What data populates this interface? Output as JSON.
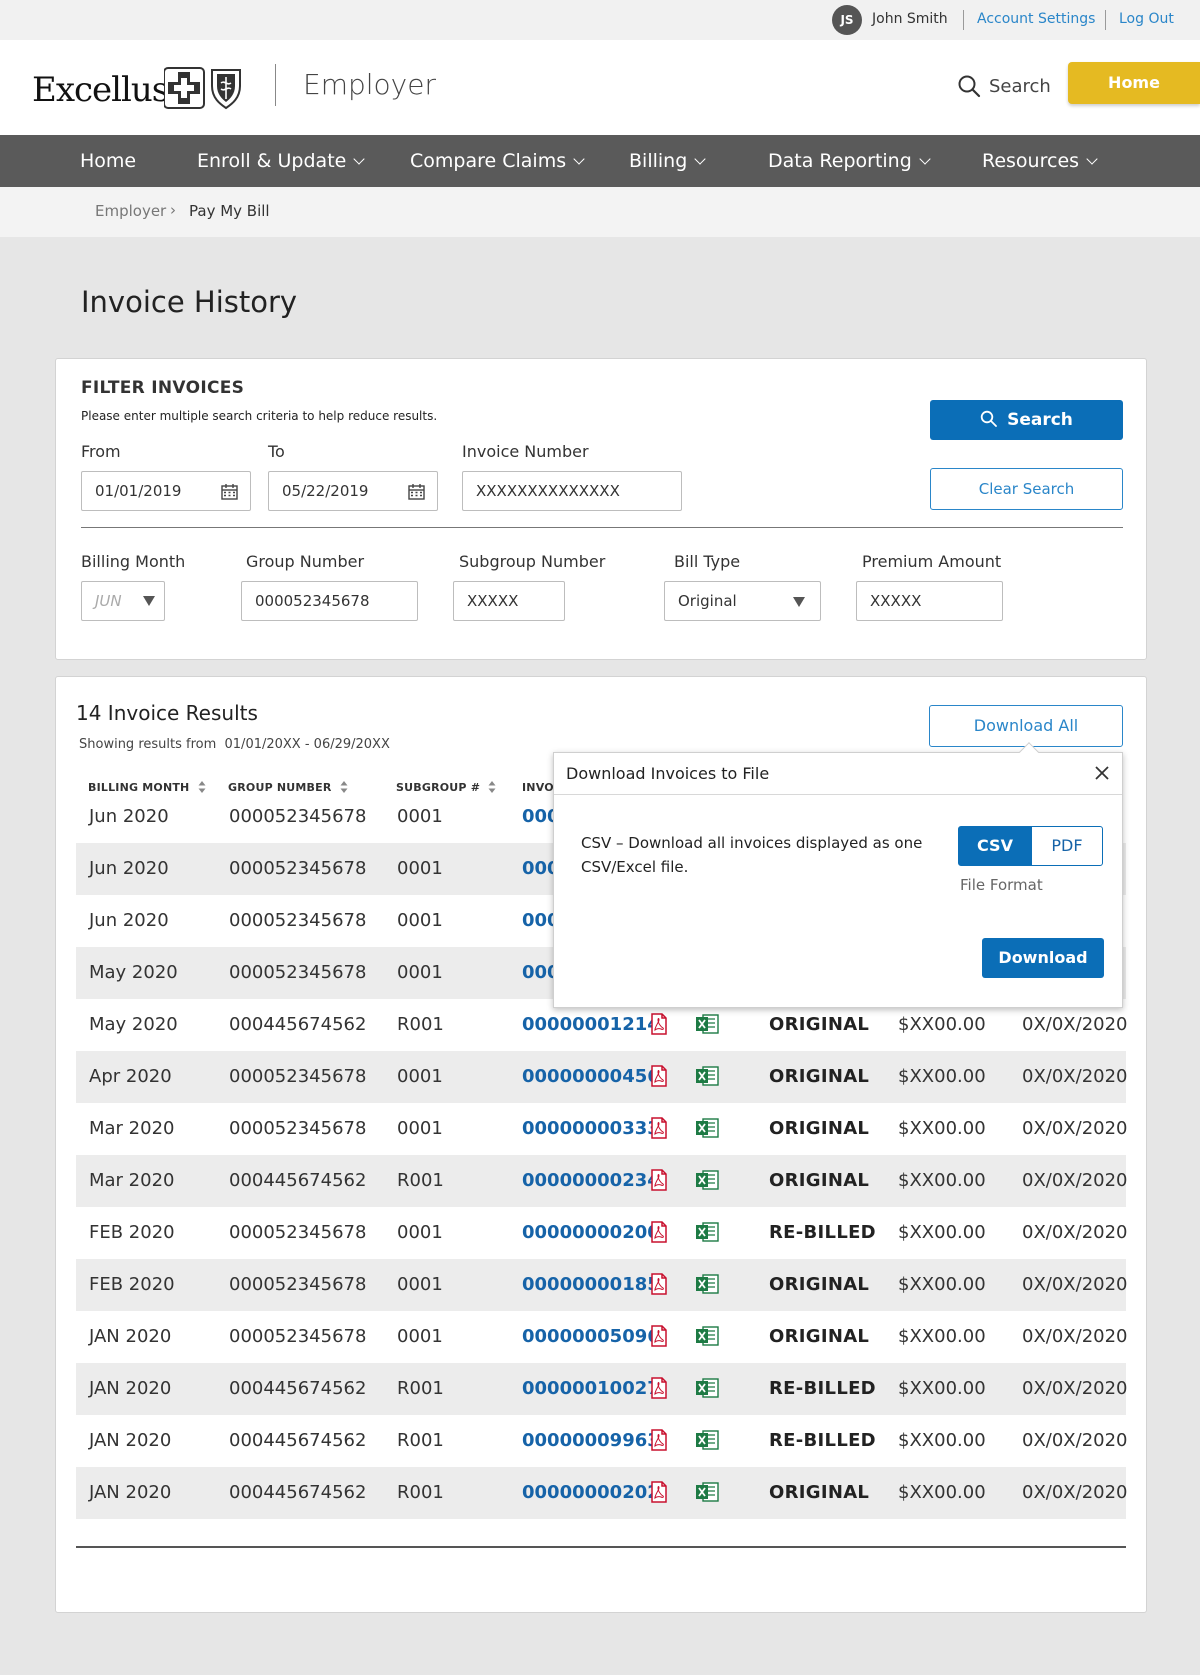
{
  "utility": {
    "initials": "JS",
    "user_name": "John Smith",
    "account_settings": "Account Settings",
    "log_out": "Log Out"
  },
  "header": {
    "logo_text": "Excellus",
    "portal": "Employer",
    "search_label": "Search",
    "home_button": "Home",
    "accent_color": "#e5ba22"
  },
  "nav": {
    "items": [
      {
        "label": "Home",
        "has_menu": false
      },
      {
        "label": "Enroll & Update",
        "has_menu": true
      },
      {
        "label": "Compare Claims",
        "has_menu": true
      },
      {
        "label": "Billing",
        "has_menu": true
      },
      {
        "label": "Data Reporting",
        "has_menu": true
      },
      {
        "label": "Resources",
        "has_menu": true
      }
    ]
  },
  "breadcrumb": {
    "parent": "Employer",
    "separator": "›",
    "current": "Pay My Bill"
  },
  "page": {
    "title": "Invoice History"
  },
  "filter": {
    "title": "FILTER INVOICES",
    "help": "Please enter multiple search criteria to help reduce results.",
    "from_label": "From",
    "from_value": "01/01/2019",
    "to_label": "To",
    "to_value": "05/22/2019",
    "invoice_number_label": "Invoice Number",
    "invoice_number_value": "XXXXXXXXXXXXXX",
    "billing_month_label": "Billing Month",
    "billing_month_value": "JUN",
    "group_number_label": "Group Number",
    "group_number_value": "000052345678",
    "subgroup_number_label": "Subgroup Number",
    "subgroup_number_value": "XXXXX",
    "bill_type_label": "Bill Type",
    "bill_type_value": "Original",
    "premium_amount_label": "Premium Amount",
    "premium_amount_value": "XXXXX",
    "search_button": "Search",
    "clear_button": "Clear Search",
    "primary_color": "#0b6eb7"
  },
  "results": {
    "title": "14 Invoice Results",
    "subtitle_prefix": "Showing results from",
    "subtitle_range": "01/01/20XX - 06/29/20XX",
    "download_all": "Download All",
    "headers": {
      "billing_month": "BILLING MONTH",
      "group_number": "GROUP NUMBER",
      "subgroup": "SUBGROUP #",
      "invoice": "INVO"
    },
    "rows": [
      {
        "month": "Jun  2020",
        "group": "000052345678",
        "subgroup": "0001",
        "invoice": "000",
        "type": "",
        "amount": "",
        "date": ""
      },
      {
        "month": "Jun  2020",
        "group": "000052345678",
        "subgroup": "0001",
        "invoice": "000",
        "type": "",
        "amount": "",
        "date": ""
      },
      {
        "month": "Jun  2020",
        "group": "000052345678",
        "subgroup": "0001",
        "invoice": "000",
        "type": "",
        "amount": "",
        "date": ""
      },
      {
        "month": "May  2020",
        "group": "000052345678",
        "subgroup": "0001",
        "invoice": "000",
        "type": "",
        "amount": "",
        "date": ""
      },
      {
        "month": "May  2020",
        "group": "000445674562",
        "subgroup": "R001",
        "invoice": "00000001214",
        "type": "ORIGINAL",
        "amount": "$XX00.00",
        "date": "0X/0X/2020"
      },
      {
        "month": "Apr  2020",
        "group": "000052345678",
        "subgroup": "0001",
        "invoice": "00000000456",
        "type": "ORIGINAL",
        "amount": "$XX00.00",
        "date": "0X/0X/2020"
      },
      {
        "month": "Mar  2020",
        "group": "000052345678",
        "subgroup": "0001",
        "invoice": "00000000333",
        "type": "ORIGINAL",
        "amount": "$XX00.00",
        "date": "0X/0X/2020"
      },
      {
        "month": "Mar  2020",
        "group": "000445674562",
        "subgroup": "R001",
        "invoice": "00000000234",
        "type": "ORIGINAL",
        "amount": "$XX00.00",
        "date": "0X/0X/2020"
      },
      {
        "month": "FEB  2020",
        "group": "000052345678",
        "subgroup": "0001",
        "invoice": "00000000200",
        "type": "RE-BILLED",
        "amount": "$XX00.00",
        "date": "0X/0X/2020"
      },
      {
        "month": "FEB  2020",
        "group": "000052345678",
        "subgroup": "0001",
        "invoice": "00000000185",
        "type": "ORIGINAL",
        "amount": "$XX00.00",
        "date": "0X/0X/2020"
      },
      {
        "month": "JAN  2020",
        "group": "000052345678",
        "subgroup": "0001",
        "invoice": "00000005096",
        "type": "ORIGINAL",
        "amount": "$XX00.00",
        "date": "0X/0X/2020"
      },
      {
        "month": "JAN  2020",
        "group": "000445674562",
        "subgroup": "R001",
        "invoice": "00000010027",
        "type": "RE-BILLED",
        "amount": "$XX00.00",
        "date": "0X/0X/2020"
      },
      {
        "month": "JAN  2020",
        "group": "000445674562",
        "subgroup": "R001",
        "invoice": "00000009963",
        "type": "RE-BILLED",
        "amount": "$XX00.00",
        "date": "0X/0X/2020"
      },
      {
        "month": "JAN  2020",
        "group": "000445674562",
        "subgroup": "R001",
        "invoice": "00000000202",
        "type": "ORIGINAL",
        "amount": "$XX00.00",
        "date": "0X/0X/2020"
      }
    ]
  },
  "download_modal": {
    "title": "Download Invoices to File",
    "description": "CSV – Download all invoices displayed as one CSV/Excel file.",
    "format_csv": "CSV",
    "format_pdf": "PDF",
    "selected_format": "CSV",
    "format_label": "File Format",
    "download_button": "Download"
  }
}
